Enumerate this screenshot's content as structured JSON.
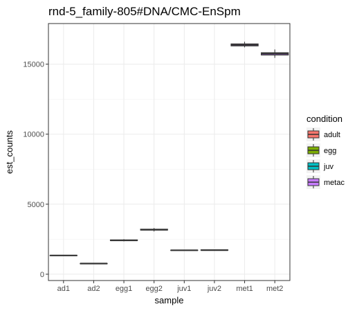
{
  "chart_data": {
    "type": "box",
    "title": "rnd-5_family-805#DNA/CMC-EnSpm",
    "xlabel": "sample",
    "ylabel": "est_counts",
    "categories": [
      "ad1",
      "ad2",
      "egg1",
      "egg2",
      "juv1",
      "juv2",
      "met1",
      "met2"
    ],
    "conditions": [
      "adult",
      "adult",
      "egg",
      "egg",
      "juv",
      "juv",
      "metac",
      "metac"
    ],
    "boxes": [
      {
        "sample": "ad1",
        "min": 1330,
        "q1": 1330,
        "median": 1340,
        "q3": 1350,
        "max": 1350
      },
      {
        "sample": "ad2",
        "min": 740,
        "q1": 750,
        "median": 760,
        "q3": 770,
        "max": 780
      },
      {
        "sample": "egg1",
        "min": 2350,
        "q1": 2400,
        "median": 2420,
        "q3": 2450,
        "max": 2500
      },
      {
        "sample": "egg2",
        "min": 3050,
        "q1": 3150,
        "median": 3180,
        "q3": 3220,
        "max": 3300
      },
      {
        "sample": "juv1",
        "min": 1690,
        "q1": 1700,
        "median": 1710,
        "q3": 1720,
        "max": 1730
      },
      {
        "sample": "juv2",
        "min": 1690,
        "q1": 1710,
        "median": 1720,
        "q3": 1740,
        "max": 1760
      },
      {
        "sample": "met1",
        "min": 16200,
        "q1": 16300,
        "median": 16380,
        "q3": 16450,
        "max": 16600
      },
      {
        "sample": "met2",
        "min": 15450,
        "q1": 15650,
        "median": 15750,
        "q3": 15820,
        "max": 16050
      }
    ],
    "yticks": [
      0,
      5000,
      10000,
      15000
    ],
    "ylim": [
      -450,
      17900
    ],
    "grid": true,
    "legend": {
      "title": "condition",
      "position": "right",
      "entries": [
        {
          "name": "adult",
          "color": "#F8766D"
        },
        {
          "name": "egg",
          "color": "#7CAE00"
        },
        {
          "name": "juv",
          "color": "#00BFC4"
        },
        {
          "name": "metac",
          "color": "#C77CFF"
        }
      ]
    }
  }
}
